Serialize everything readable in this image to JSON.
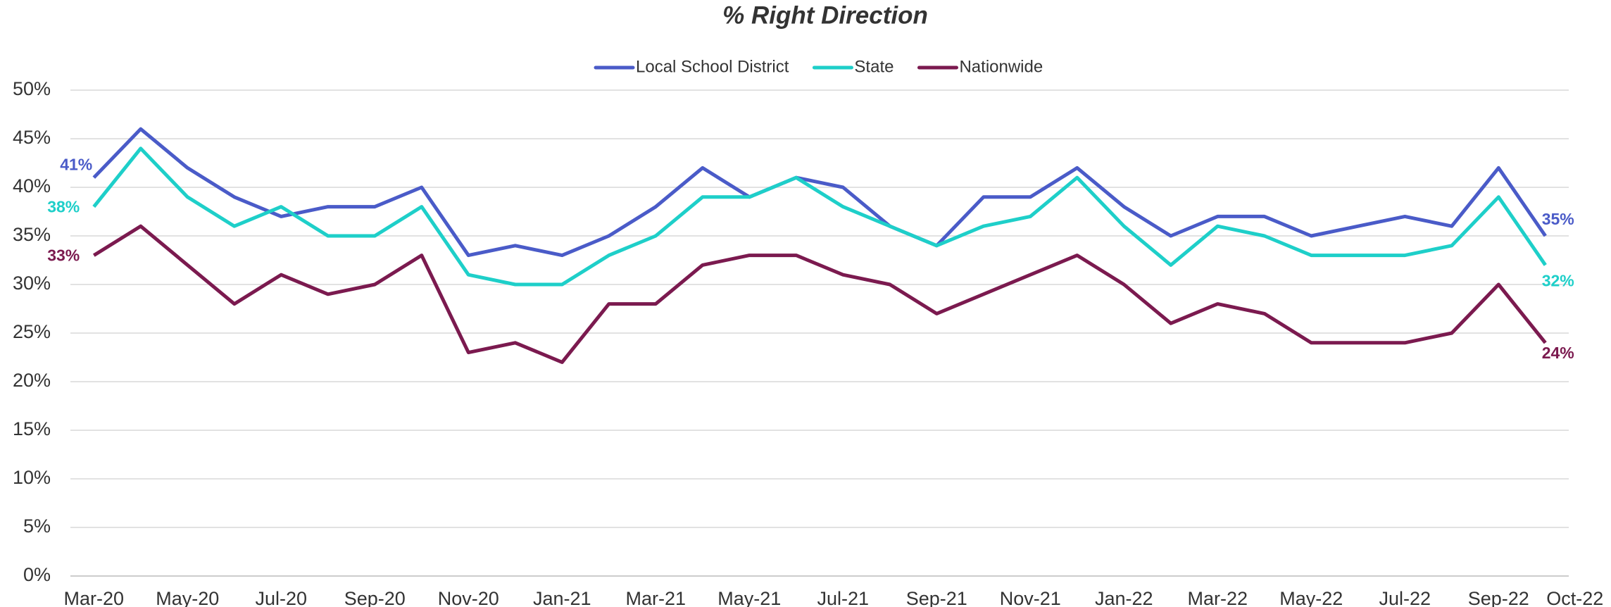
{
  "chart_data": {
    "type": "line",
    "title": "% Right Direction",
    "categories": [
      "Mar-20",
      null,
      "May-20",
      null,
      "Jul-20",
      null,
      "Sep-20",
      null,
      "Nov-20",
      null,
      "Jan-21",
      null,
      "Mar-21",
      null,
      "May-21",
      null,
      "Jul-21",
      null,
      "Sep-21",
      null,
      "Nov-21",
      null,
      "Jan-22",
      null,
      "Mar-22",
      null,
      "May-22",
      null,
      "Jul-22",
      null,
      "Sep-22",
      "Oct-22"
    ],
    "series": [
      {
        "name": "Local School District",
        "color": "#4a5bc8",
        "values": [
          41,
          46,
          42,
          39,
          37,
          38,
          38,
          40,
          33,
          34,
          33,
          35,
          38,
          42,
          39,
          41,
          40,
          36,
          34,
          39,
          39,
          42,
          38,
          35,
          37,
          37,
          35,
          36,
          37,
          36,
          42,
          35
        ],
        "value_labels": [
          "41%",
          null,
          null,
          null,
          null,
          null,
          null,
          null,
          null,
          null,
          null,
          null,
          null,
          null,
          null,
          null,
          null,
          null,
          null,
          null,
          null,
          null,
          null,
          null,
          null,
          null,
          null,
          null,
          null,
          null,
          null,
          "35%"
        ]
      },
      {
        "name": "State",
        "color": "#1ecfc9",
        "values": [
          38,
          44,
          39,
          36,
          38,
          35,
          35,
          38,
          31,
          30,
          30,
          33,
          35,
          39,
          39,
          41,
          38,
          36,
          34,
          36,
          37,
          41,
          36,
          32,
          36,
          35,
          33,
          33,
          33,
          34,
          39,
          32
        ],
        "value_labels": [
          "38%",
          null,
          null,
          null,
          null,
          null,
          null,
          null,
          null,
          null,
          null,
          null,
          null,
          null,
          null,
          null,
          null,
          null,
          null,
          null,
          null,
          null,
          null,
          null,
          null,
          null,
          null,
          null,
          null,
          null,
          null,
          "32%"
        ]
      },
      {
        "name": "Nationwide",
        "color": "#7b1a4f",
        "values": [
          33,
          36,
          32,
          28,
          31,
          29,
          30,
          33,
          23,
          24,
          22,
          28,
          28,
          32,
          33,
          33,
          31,
          30,
          27,
          29,
          31,
          33,
          30,
          26,
          28,
          27,
          24,
          24,
          24,
          25,
          30,
          24
        ],
        "value_labels": [
          "33%",
          null,
          null,
          null,
          null,
          null,
          null,
          null,
          null,
          null,
          null,
          null,
          null,
          null,
          null,
          null,
          null,
          null,
          null,
          null,
          null,
          null,
          null,
          null,
          null,
          null,
          null,
          null,
          null,
          null,
          null,
          "24%"
        ]
      }
    ],
    "ylim": [
      0,
      50
    ],
    "yticks": [
      {
        "value": 0,
        "label": "0%"
      },
      {
        "value": 5,
        "label": "5%"
      },
      {
        "value": 10,
        "label": "10%"
      },
      {
        "value": 15,
        "label": "15%"
      },
      {
        "value": 20,
        "label": "20%"
      },
      {
        "value": 25,
        "label": "25%"
      },
      {
        "value": 30,
        "label": "30%"
      },
      {
        "value": 35,
        "label": "35%"
      },
      {
        "value": 40,
        "label": "40%"
      },
      {
        "value": 45,
        "label": "45%"
      },
      {
        "value": 50,
        "label": "50%"
      }
    ],
    "grid": true,
    "legend": "top"
  }
}
